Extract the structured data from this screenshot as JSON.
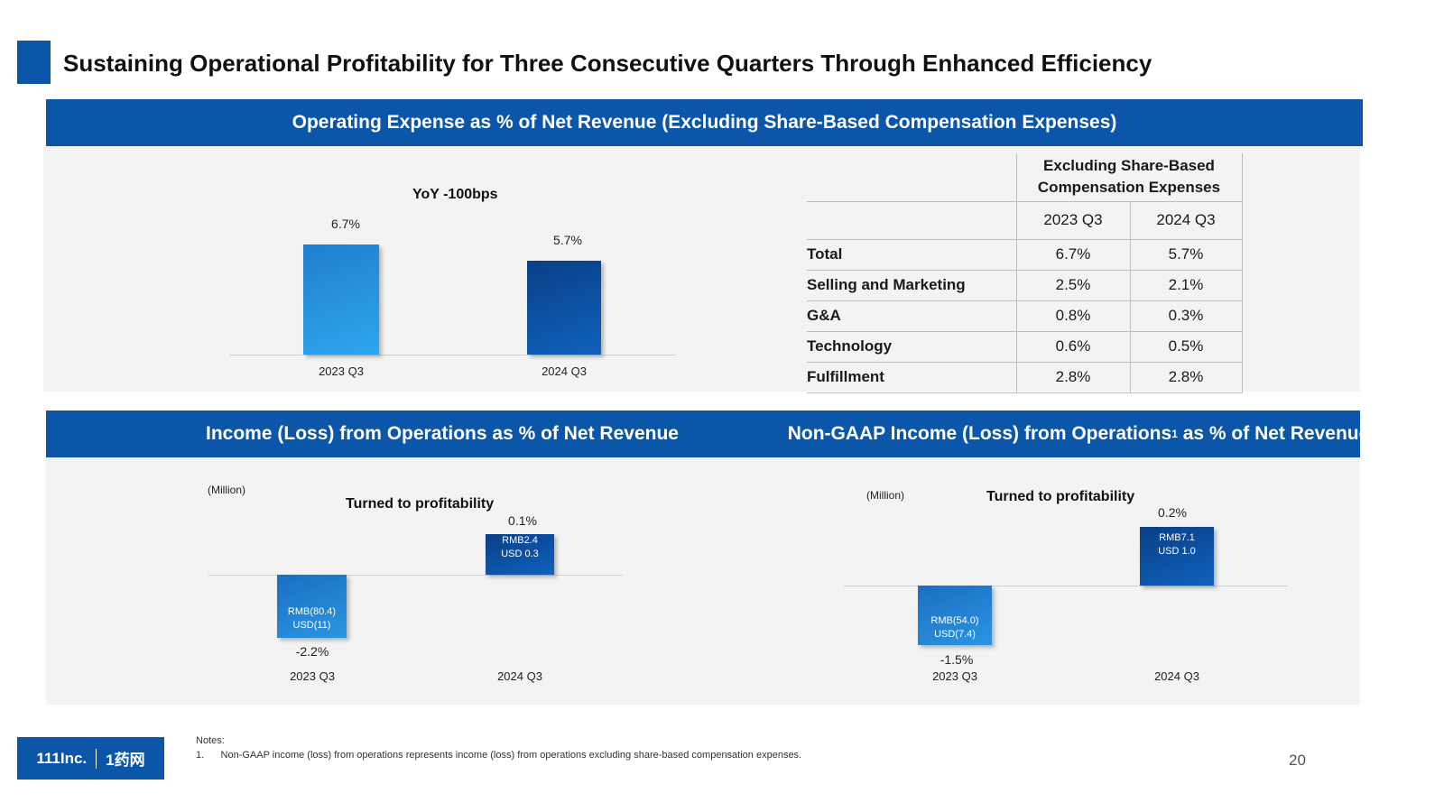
{
  "title": "Sustaining Operational Profitability for Three Consecutive Quarters Through Enhanced Efficiency",
  "top_section": {
    "band_title": "Operating Expense as % of Net Revenue (Excluding Share-Based Compensation Expenses)",
    "chart_note": "YoY -100bps"
  },
  "table": {
    "header_line1": "Excluding Share-Based",
    "header_line2": "Compensation Expenses",
    "col1": "2023 Q3",
    "col2": "2024 Q3",
    "rows": [
      {
        "label": "Total",
        "v1": "6.7%",
        "v2": "5.7%"
      },
      {
        "label": "Selling and Marketing",
        "v1": "2.5%",
        "v2": "2.1%"
      },
      {
        "label": "G&A",
        "v1": "0.8%",
        "v2": "0.3%"
      },
      {
        "label": "Technology",
        "v1": "0.6%",
        "v2": "0.5%"
      },
      {
        "label": "Fulfillment",
        "v1": "2.8%",
        "v2": "2.8%"
      }
    ]
  },
  "left_section": {
    "band_title": "Income (Loss) from Operations as % of Net Revenue",
    "unit": "(Million)",
    "chart_note": "Turned to profitability"
  },
  "right_section": {
    "band_title_pre": "Non-GAAP Income (Loss) from Operations",
    "band_sup": "1",
    "band_title_post": " as % of Net Revenue",
    "unit": "(Million)",
    "chart_note": "Turned to profitability"
  },
  "chart_data": [
    {
      "type": "bar",
      "title": "Operating Expense as % of Net Revenue (Excluding Share-Based Compensation Expenses)",
      "categories": [
        "2023 Q3",
        "2024 Q3"
      ],
      "values": [
        6.7,
        5.7
      ],
      "data_labels": [
        "6.7%",
        "5.7%"
      ],
      "ylim": [
        0,
        8
      ]
    },
    {
      "type": "bar",
      "title": "Income (Loss) from Operations as % of Net Revenue",
      "categories": [
        "2023 Q3",
        "2024 Q3"
      ],
      "values": [
        -2.2,
        0.1
      ],
      "data_labels": [
        "-2.2%",
        "0.1%"
      ],
      "bar_labels": [
        [
          "RMB(80.4)",
          "USD(11)"
        ],
        [
          "RMB2.4",
          "USD 0.3"
        ]
      ]
    },
    {
      "type": "bar",
      "title": "Non-GAAP Income (Loss) from Operations as % of Net Revenue",
      "categories": [
        "2023 Q3",
        "2024 Q3"
      ],
      "values": [
        -1.5,
        0.2
      ],
      "data_labels": [
        "-1.5%",
        "0.2%"
      ],
      "bar_labels": [
        [
          "RMB(54.0)",
          "USD(7.4)"
        ],
        [
          "RMB7.1",
          "USD 1.0"
        ]
      ]
    }
  ],
  "notes": {
    "heading": "Notes:",
    "items": [
      "1.      Non-GAAP income (loss) from operations represents income (loss) from operations excluding share-based compensation expenses."
    ]
  },
  "logo": {
    "left": "111Inc.",
    "right": "1药网"
  },
  "page_number": "20",
  "colors": {
    "brand": "#0b56a8",
    "panel": "#f3f3f3"
  }
}
